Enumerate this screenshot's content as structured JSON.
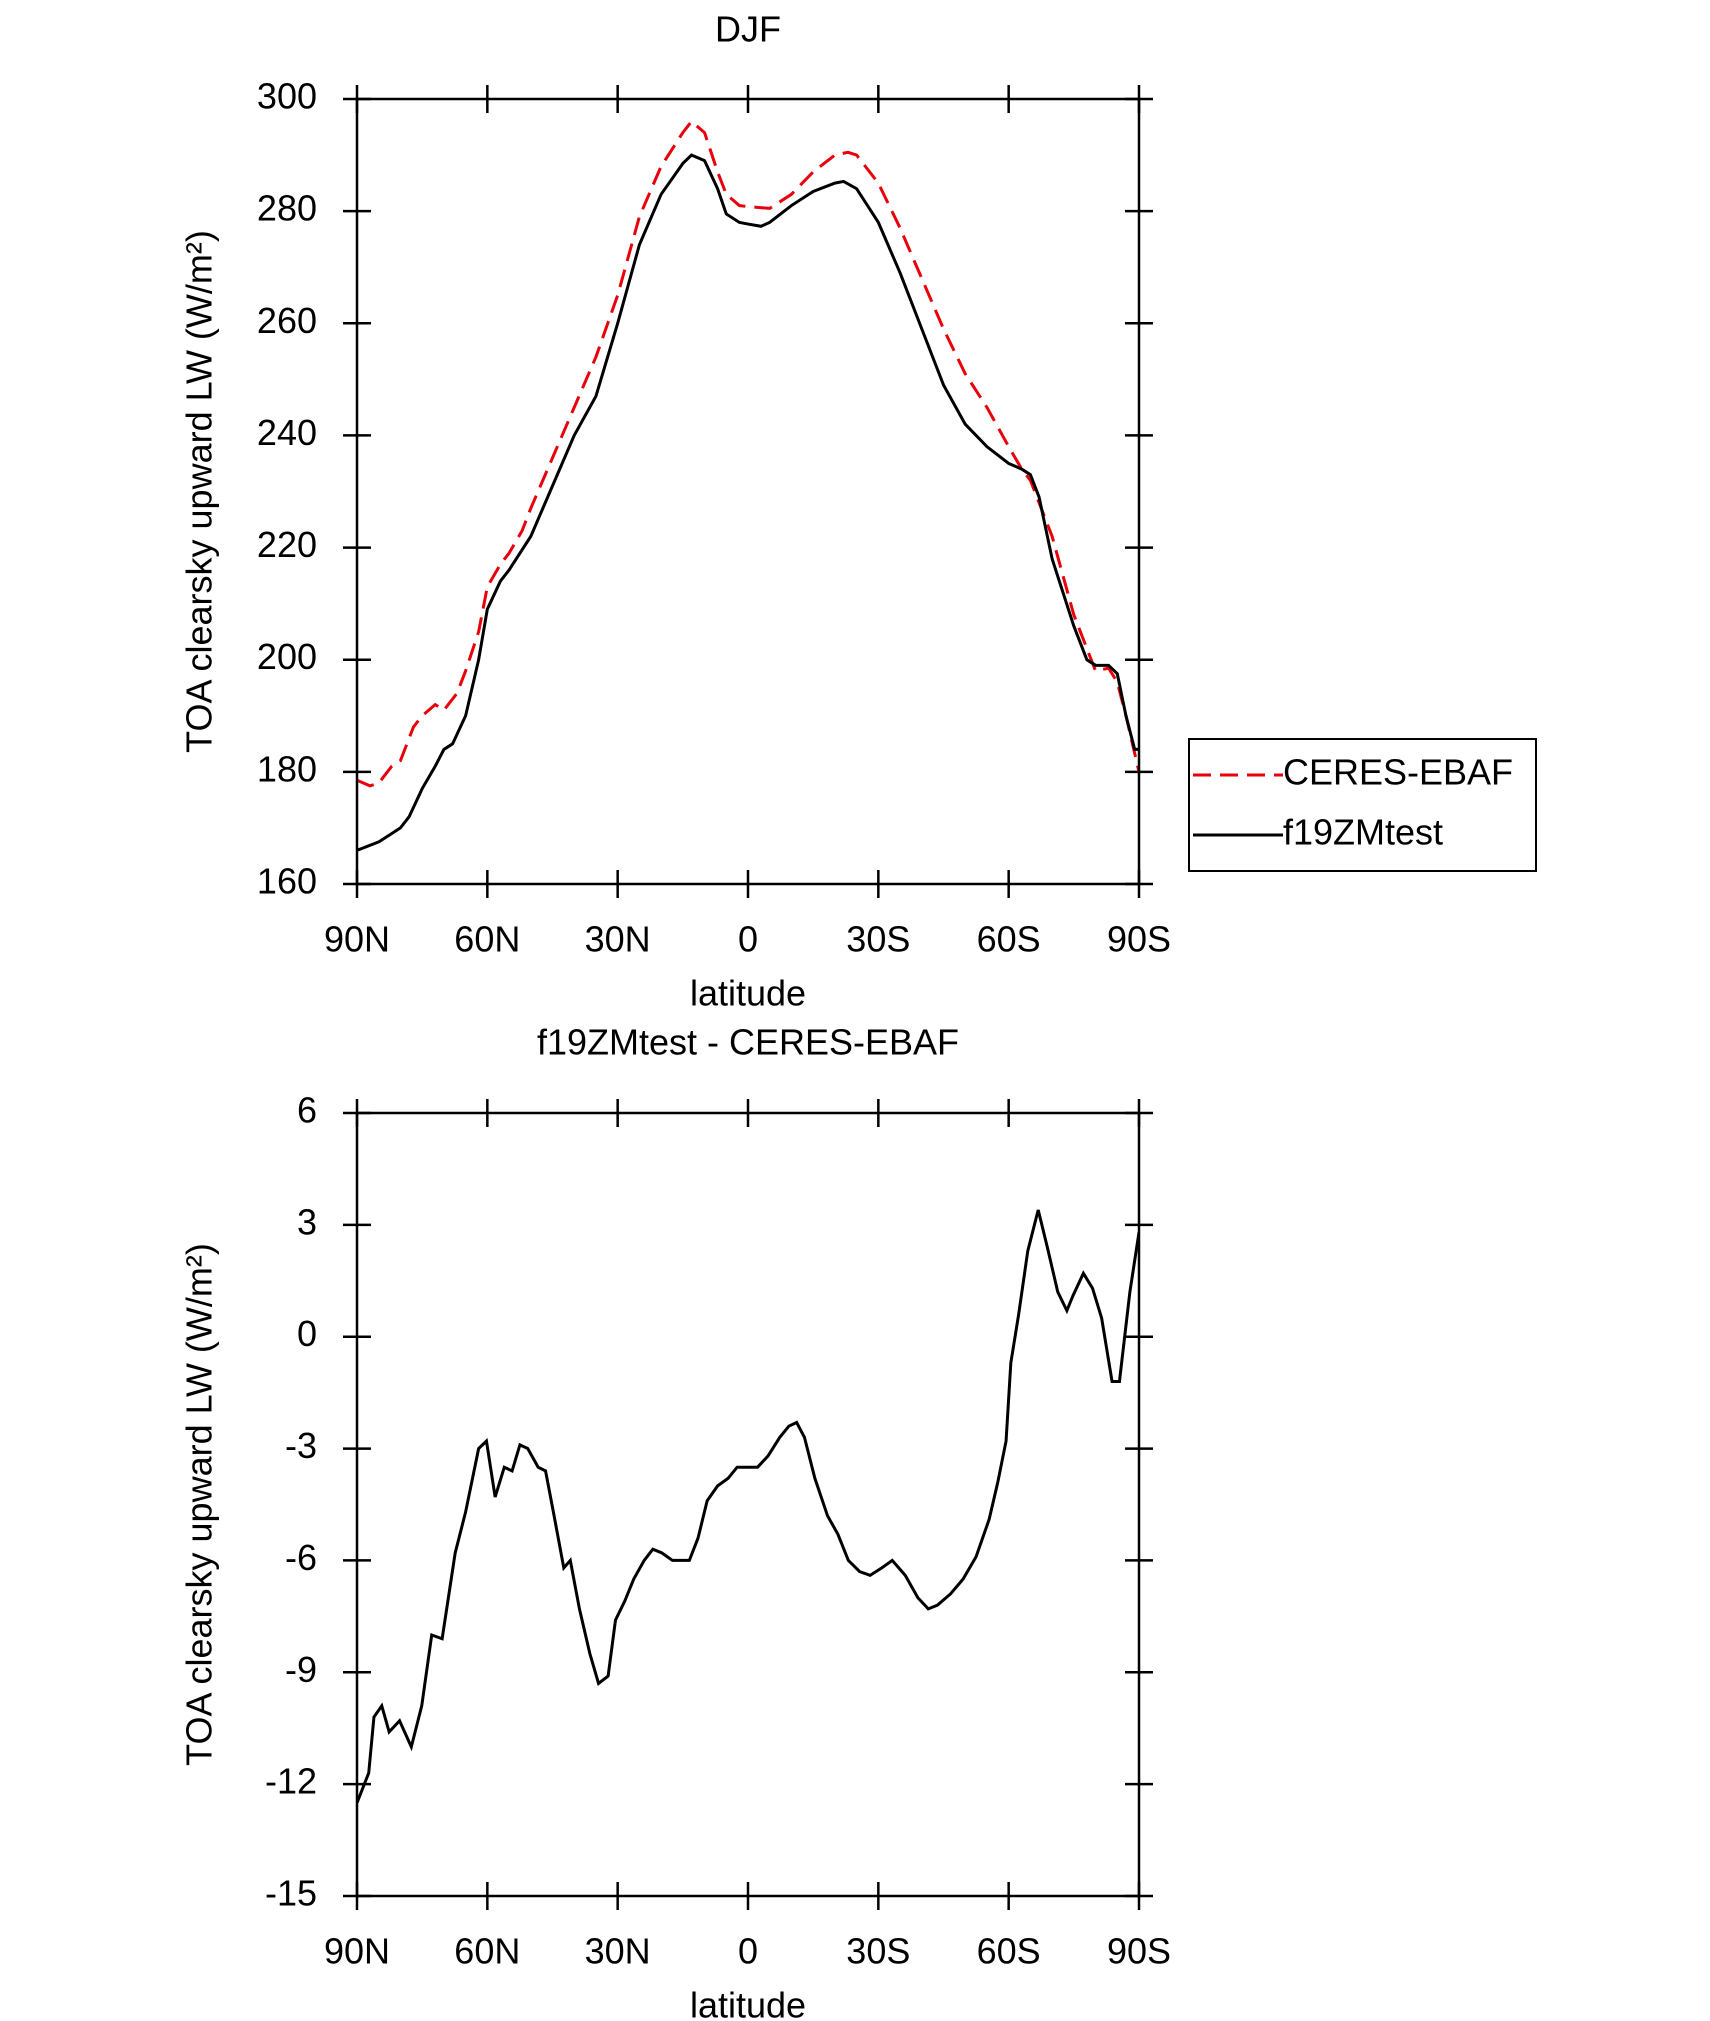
{
  "chart_data": [
    {
      "type": "line",
      "title": "DJF",
      "xlabel": "latitude",
      "ylabel": "TOA clearsky upward LW (W/m²)",
      "xlim": [
        90,
        -90
      ],
      "xticks": [
        {
          "value": 90,
          "label": "90N"
        },
        {
          "value": 60,
          "label": "60N"
        },
        {
          "value": 30,
          "label": "30N"
        },
        0,
        {
          "value": -30,
          "label": "30S"
        },
        {
          "value": -60,
          "label": "60S"
        },
        {
          "value": -90,
          "label": "90S"
        }
      ],
      "ylim": [
        160,
        300
      ],
      "yticks": [
        160,
        180,
        200,
        220,
        240,
        260,
        280,
        300
      ],
      "legend": "right",
      "series": [
        {
          "name": "CERES-EBAF",
          "color": "#e8000b",
          "linestyle": "dashed",
          "x": [
            90,
            87,
            85,
            82,
            80,
            77,
            75,
            72,
            70,
            67,
            65,
            62,
            60,
            57,
            55,
            52,
            50,
            45,
            40,
            35,
            30,
            25,
            20,
            15,
            13,
            10,
            7,
            5,
            2,
            0,
            -5,
            -10,
            -15,
            -20,
            -23,
            -25,
            -30,
            -35,
            -40,
            -45,
            -50,
            -55,
            -60,
            -63,
            -65,
            -70,
            -75,
            -78,
            -80,
            -83,
            -85,
            -87,
            -90
          ],
          "values": [
            178.5,
            177.5,
            178,
            181,
            182,
            188,
            190,
            192,
            191,
            194,
            198,
            205,
            213,
            217,
            219,
            223,
            227,
            236,
            245,
            254,
            265,
            279,
            288,
            294,
            296,
            294,
            287,
            283,
            281,
            280.8,
            280.5,
            283,
            287,
            290,
            290.5,
            290,
            285,
            277,
            268,
            259,
            251,
            245,
            238,
            234,
            232,
            222,
            208,
            202,
            198,
            198.5,
            196,
            190,
            180
          ]
        },
        {
          "name": "f19ZMtest",
          "color": "#000000",
          "linestyle": "solid",
          "x": [
            90,
            85,
            80,
            78,
            75,
            72,
            70,
            68,
            65,
            62,
            60,
            57,
            55,
            50,
            45,
            40,
            35,
            30,
            25,
            20,
            15,
            13,
            10,
            7,
            5,
            2,
            0,
            -3,
            -5,
            -10,
            -15,
            -20,
            -22,
            -25,
            -30,
            -35,
            -40,
            -45,
            -50,
            -55,
            -60,
            -63,
            -65,
            -67,
            -70,
            -75,
            -78,
            -80,
            -83,
            -85,
            -87,
            -89,
            -90
          ],
          "values": [
            166,
            167.5,
            170,
            172,
            177,
            181,
            184,
            185,
            190,
            200,
            209,
            214,
            216,
            222,
            231,
            240,
            247,
            260,
            274,
            283,
            288.5,
            290,
            289,
            284,
            279.5,
            278,
            277.7,
            277.3,
            278,
            281,
            283.5,
            285,
            285.3,
            284,
            278,
            269,
            259,
            249,
            242,
            238,
            235,
            234,
            233,
            229,
            218,
            206,
            200,
            199,
            199,
            197.5,
            190,
            184,
            184
          ]
        }
      ]
    },
    {
      "type": "line",
      "title": "f19ZMtest - CERES-EBAF",
      "xlabel": "latitude",
      "ylabel": "TOA clearsky upward LW (W/m²)",
      "xlim": [
        90,
        -90
      ],
      "xticks": [
        {
          "value": 90,
          "label": "90N"
        },
        {
          "value": 60,
          "label": "60N"
        },
        {
          "value": 30,
          "label": "30N"
        },
        0,
        {
          "value": -30,
          "label": "30S"
        },
        {
          "value": -60,
          "label": "60S"
        },
        {
          "value": -90,
          "label": "90S"
        }
      ],
      "ylim": [
        -15,
        6
      ],
      "yticks": [
        -15,
        -12,
        -9,
        -6,
        -3,
        0,
        3,
        6
      ],
      "series": [
        {
          "color": "#000000",
          "linestyle": "solid",
          "x": [
            90,
            87.3,
            86.1,
            84.3,
            82.6,
            80.2,
            77.5,
            75.1,
            72.8,
            70.4,
            67.4,
            65,
            62,
            60.2,
            58.2,
            56.1,
            54.3,
            52.5,
            50.7,
            48.3,
            46.6,
            44.8,
            42.4,
            40.9,
            38.8,
            36.4,
            34.4,
            32.2,
            30.5,
            28.4,
            26.3,
            23.9,
            21.9,
            19.8,
            17.4,
            15.3,
            13.5,
            11.5,
            9.4,
            7,
            4.6,
            2.5,
            0.1,
            -2.2,
            -4.6,
            -7.3,
            -9.4,
            -11.2,
            -13,
            -15.4,
            -18.3,
            -20.7,
            -23.1,
            -25.7,
            -28.1,
            -30.8,
            -33.2,
            -36.2,
            -39.1,
            -41.5,
            -43.6,
            -46.6,
            -49.5,
            -52.5,
            -55.5,
            -57.5,
            -59.4,
            -60.5,
            -62.3,
            -64.4,
            -66.8,
            -68.9,
            -71.3,
            -73.4,
            -74.8,
            -77.2,
            -79.3,
            -81.4,
            -83.8,
            -85.5,
            -87.9,
            -90
          ],
          "values": [
            -12.5,
            -11.7,
            -10.2,
            -9.9,
            -10.6,
            -10.3,
            -11,
            -9.9,
            -8,
            -8.1,
            -5.8,
            -4.7,
            -3,
            -2.8,
            -4.3,
            -3.5,
            -3.6,
            -2.9,
            -3,
            -3.5,
            -3.6,
            -4.7,
            -6.2,
            -6,
            -7.3,
            -8.5,
            -9.3,
            -9.1,
            -7.6,
            -7.1,
            -6.5,
            -6,
            -5.7,
            -5.8,
            -6,
            -6,
            -6,
            -5.4,
            -4.4,
            -4,
            -3.8,
            -3.5,
            -3.5,
            -3.5,
            -3.2,
            -2.7,
            -2.4,
            -2.3,
            -2.7,
            -3.8,
            -4.8,
            -5.3,
            -6,
            -6.3,
            -6.4,
            -6.2,
            -6,
            -6.4,
            -7,
            -7.3,
            -7.2,
            -6.9,
            -6.5,
            -5.9,
            -4.9,
            -3.9,
            -2.8,
            -0.7,
            0.6,
            2.3,
            3.4,
            2.4,
            1.2,
            0.7,
            1.1,
            1.7,
            1.3,
            0.5,
            -1.2,
            -1.2,
            1.2,
            2.8
          ]
        }
      ]
    }
  ]
}
